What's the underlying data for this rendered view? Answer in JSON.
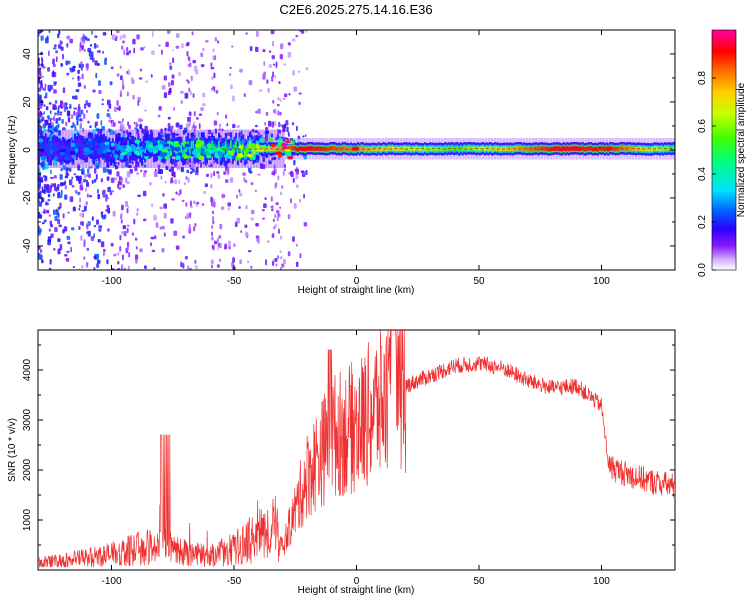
{
  "chart_data": [
    {
      "type": "heatmap",
      "title": "C2E6.2025.275.14.16.E36",
      "xlabel": "Height of straight line (km)",
      "ylabel": "Frequency (Hz)",
      "xlim": [
        -130,
        130
      ],
      "ylim": [
        -50,
        50
      ],
      "x_ticks": [
        -100,
        -50,
        0,
        50,
        100
      ],
      "y_ticks": [
        -40,
        -20,
        0,
        20,
        40
      ],
      "ridge": {
        "frequency_hz": 0.5,
        "description_points": [
          {
            "x": -110,
            "amplitude": 0.22
          },
          {
            "x": -80,
            "amplitude": 0.38
          },
          {
            "x": -50,
            "amplitude": 0.5
          },
          {
            "x": -22,
            "amplitude": 0.95
          },
          {
            "x": 0,
            "amplitude": 0.8
          },
          {
            "x": 40,
            "amplitude": 0.55
          },
          {
            "x": 85,
            "amplitude": 0.96
          },
          {
            "x": 103,
            "amplitude": 0.9
          },
          {
            "x": 130,
            "amplitude": 0.55
          }
        ]
      },
      "colorbar": {
        "label": "Normalized spectral amplitude",
        "range": [
          0,
          1
        ],
        "ticks": [
          "0.0",
          "0.2",
          "0.4",
          "0.6",
          "0.8"
        ]
      }
    },
    {
      "type": "line",
      "title": "",
      "xlabel": "Height of straight line (km)",
      "ylabel": "SNR (10 * v/v)",
      "xlim": [
        -130,
        130
      ],
      "ylim": [
        0,
        4800
      ],
      "x_ticks": [
        -100,
        -50,
        0,
        50,
        100
      ],
      "y_ticks": [
        1000,
        2000,
        3000,
        4000
      ],
      "color": "#f03030",
      "envelope": {
        "x": [
          -130,
          -110,
          -100,
          -90,
          -80,
          -70,
          -60,
          -50,
          -40,
          -33,
          -30,
          -20,
          -10,
          0,
          10,
          20,
          30,
          40,
          50,
          60,
          70,
          80,
          90,
          100,
          103,
          110,
          120,
          130
        ],
        "y": [
          200,
          350,
          450,
          600,
          700,
          500,
          400,
          600,
          1000,
          1200,
          500,
          2000,
          2800,
          3000,
          3500,
          3700,
          3900,
          4100,
          4150,
          4050,
          3800,
          3650,
          3700,
          3300,
          2100,
          1950,
          1800,
          1700
        ]
      }
    }
  ]
}
